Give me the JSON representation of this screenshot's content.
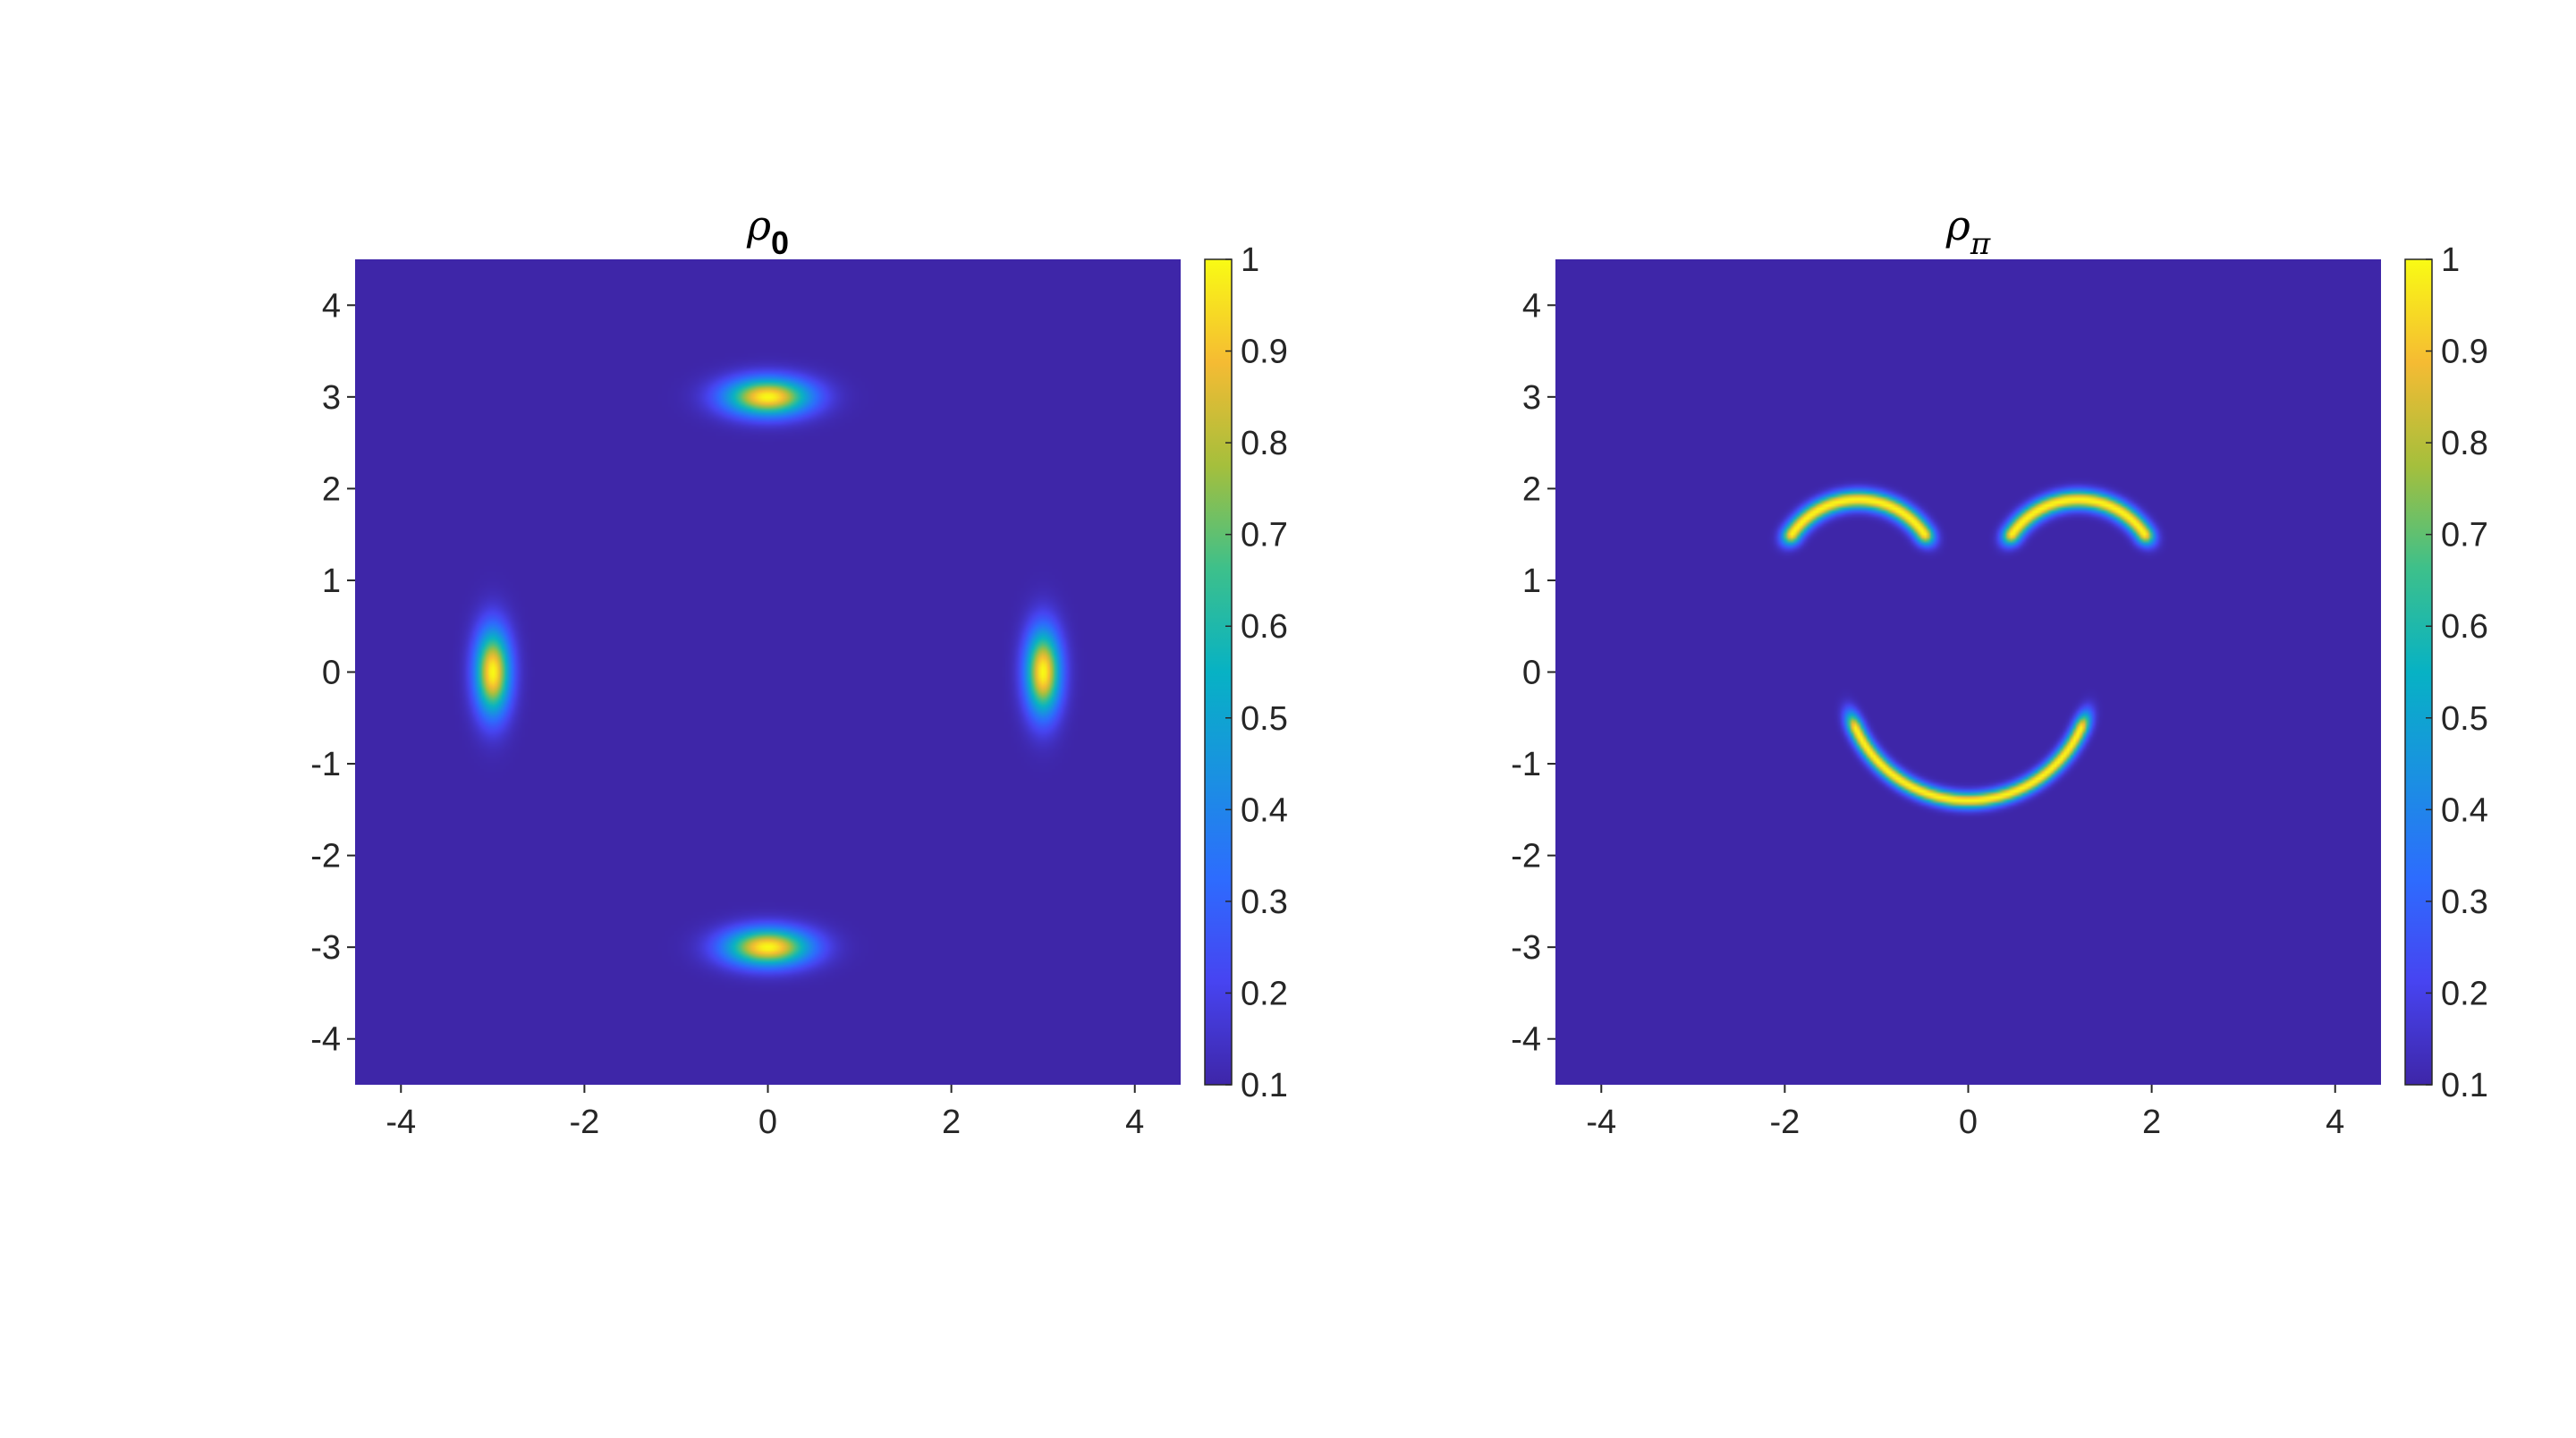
{
  "chart_data": [
    {
      "type": "heatmap",
      "title": {
        "symbol": "ρ",
        "subscript": "0"
      },
      "xlim": [
        -4.5,
        4.5
      ],
      "ylim": [
        -4.5,
        4.5
      ],
      "x_ticks": [
        -4,
        -2,
        0,
        2,
        4
      ],
      "y_ticks": [
        -4,
        -3,
        -2,
        -1,
        0,
        1,
        2,
        3,
        4
      ],
      "colorbar": {
        "range": [
          0.1,
          1
        ],
        "ticks": [
          "0.1",
          "0.2",
          "0.3",
          "0.4",
          "0.5",
          "0.6",
          "0.7",
          "0.8",
          "0.9",
          "1"
        ]
      },
      "colormap": "parula",
      "grid": false,
      "blobs": [
        {
          "shape": "ellipse",
          "center": [
            0,
            3
          ],
          "sigma": [
            0.32,
            0.14
          ],
          "peak": 1
        },
        {
          "shape": "ellipse",
          "center": [
            0,
            -3
          ],
          "sigma": [
            0.32,
            0.14
          ],
          "peak": 1
        },
        {
          "shape": "ellipse",
          "center": [
            -3,
            0
          ],
          "sigma": [
            0.13,
            0.32
          ],
          "peak": 1
        },
        {
          "shape": "ellipse",
          "center": [
            3,
            0
          ],
          "sigma": [
            0.13,
            0.32
          ],
          "peak": 1
        }
      ]
    },
    {
      "type": "heatmap",
      "title": {
        "symbol": "ρ",
        "subscript": "π"
      },
      "xlim": [
        -4.5,
        4.5
      ],
      "ylim": [
        -4.5,
        4.5
      ],
      "x_ticks": [
        -4,
        -2,
        0,
        2,
        4
      ],
      "y_ticks": [
        -4,
        -3,
        -2,
        -1,
        0,
        1,
        2,
        3,
        4
      ],
      "colorbar": {
        "range": [
          0.1,
          1
        ],
        "ticks": [
          "0.1",
          "0.2",
          "0.3",
          "0.4",
          "0.5",
          "0.6",
          "0.7",
          "0.8",
          "0.9",
          "1"
        ]
      },
      "colormap": "parula",
      "grid": false,
      "blobs": [
        {
          "shape": "arc",
          "center": [
            -1.2,
            1.0
          ],
          "radius": 0.88,
          "angle_range": [
            35,
            145
          ],
          "width": 0.07,
          "peak": 1
        },
        {
          "shape": "arc",
          "center": [
            1.2,
            1.0
          ],
          "radius": 0.88,
          "angle_range": [
            35,
            145
          ],
          "width": 0.07,
          "peak": 1
        },
        {
          "shape": "arc",
          "center": [
            0,
            -0.05
          ],
          "radius": 1.35,
          "angle_range": [
            205,
            335
          ],
          "width": 0.06,
          "peak": 1
        }
      ]
    }
  ]
}
